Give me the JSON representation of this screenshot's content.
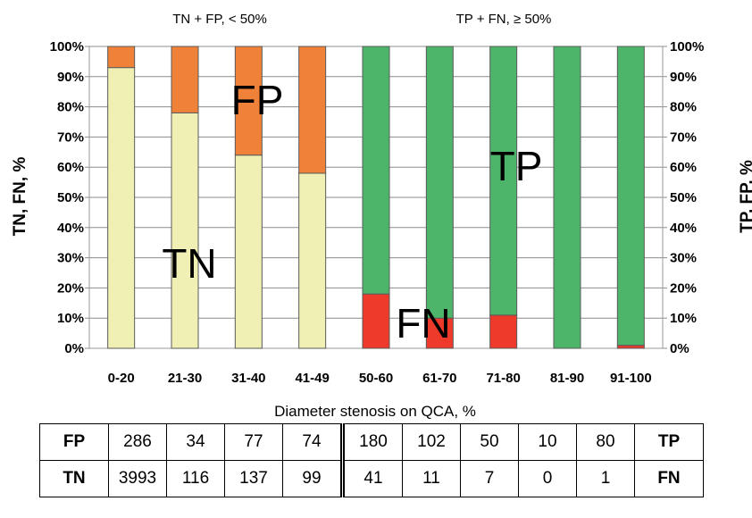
{
  "chart_data": {
    "type": "bar",
    "stacked": true,
    "grid": "horizontal",
    "legend": "none",
    "xlabel": "Diameter stenosis on QCA, %",
    "ylabel_left": "TN, FN, %",
    "ylabel_right": "TP, FP, %",
    "ylim": [
      0,
      100
    ],
    "yticks_left": [
      "0%",
      "10%",
      "20%",
      "30%",
      "40%",
      "50%",
      "60%",
      "70%",
      "80%",
      "90%",
      "100%"
    ],
    "yticks_right": [
      "100%",
      "90%",
      "80%",
      "70%",
      "60%",
      "50%",
      "40%",
      "30%",
      "20%",
      "10%",
      "0%"
    ],
    "categories": [
      "0-20",
      "21-30",
      "31-40",
      "41-49",
      "50-60",
      "61-70",
      "71-80",
      "81-90",
      "91-100"
    ],
    "series": [
      {
        "key": "TN",
        "values": [
          93,
          78,
          64,
          58,
          0,
          0,
          0,
          0,
          0
        ],
        "color": "#f0f0b4"
      },
      {
        "key": "FP",
        "values": [
          7,
          22,
          36,
          42,
          0,
          0,
          0,
          0,
          0
        ],
        "color": "#f08138"
      },
      {
        "key": "FN",
        "values": [
          0,
          0,
          0,
          0,
          18,
          10,
          11,
          0,
          1
        ],
        "color": "#ee3a2a"
      },
      {
        "key": "TP",
        "values": [
          0,
          0,
          0,
          0,
          82,
          90,
          89,
          100,
          99
        ],
        "color": "#4db56a"
      }
    ],
    "group_labels": [
      "TN + FP, < 50%",
      "TP + FN, ≥ 50%"
    ],
    "annotations": [
      "FP",
      "TN",
      "TP",
      "FN"
    ]
  },
  "table": {
    "rows": [
      {
        "left": "FP",
        "values": [
          "286",
          "34",
          "77",
          "74",
          "180",
          "102",
          "50",
          "10",
          "80"
        ],
        "right": "TP"
      },
      {
        "left": "TN",
        "values": [
          "3993",
          "116",
          "137",
          "99",
          "41",
          "11",
          "7",
          "0",
          "1"
        ],
        "right": "FN"
      }
    ]
  }
}
